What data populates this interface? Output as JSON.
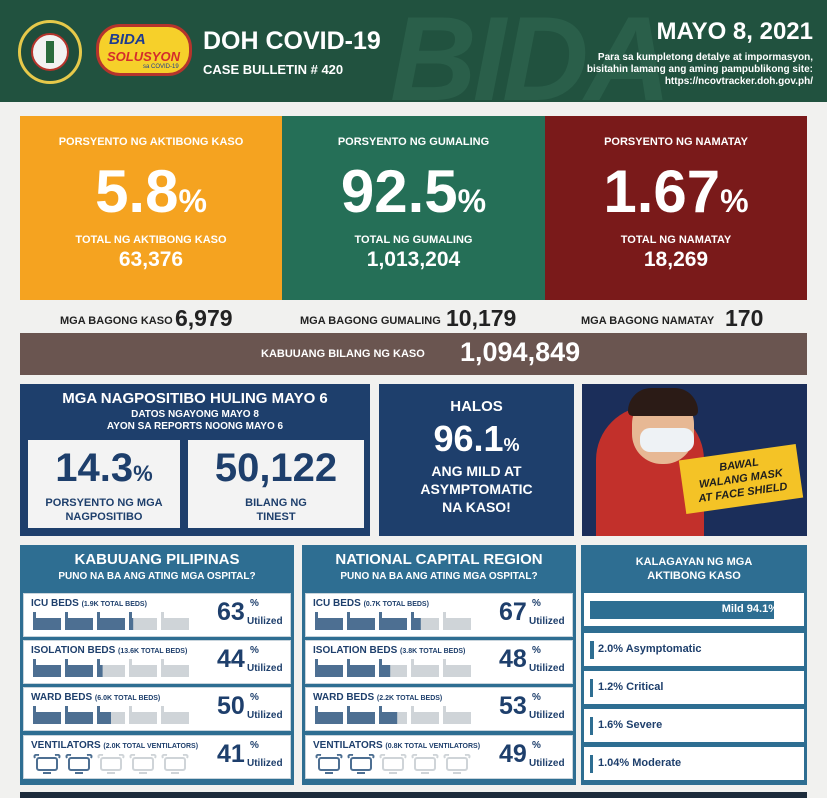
{
  "header": {
    "title": "DOH COVID-19",
    "subtitle": "CASE BULLETIN # 420",
    "date": "MAYO 8, 2021",
    "note_line1": "Para sa kumpletong detalye at impormasyon,",
    "note_line2": "bisitahin lamang ang aming pampublikong site:",
    "note_line3": "https://ncovtracker.doh.gov.ph/",
    "bida_line1": "BIDA",
    "bida_line2": "SOLUSYON",
    "bida_line3": "sa COVID-19",
    "deco": "BIDA"
  },
  "active": {
    "label": "PORSYENTO NG AKTIBONG KASO",
    "percent": "5.8",
    "pct_sign": "%",
    "total_label": "TOTAL NG AKTIBONG KASO",
    "total": "63,376",
    "color": "#f5a320"
  },
  "recovered": {
    "label": "PORSYENTO NG GUMALING",
    "percent": "92.5",
    "pct_sign": "%",
    "total_label": "TOTAL NG GUMALING",
    "total": "1,013,204",
    "color": "#256f57"
  },
  "died": {
    "label": "PORSYENTO NG NAMATAY",
    "percent": "1.67",
    "pct_sign": "%",
    "total_label": "TOTAL NG NAMATAY",
    "total": "18,269",
    "color": "#7a1a1a"
  },
  "new_cases": {
    "label": "MGA BAGONG KASO",
    "value": "6,979"
  },
  "new_recovered": {
    "label": "MGA BAGONG GUMALING",
    "value": "10,179"
  },
  "new_deaths": {
    "label": "MGA BAGONG NAMATAY",
    "value": "170"
  },
  "total_cases": {
    "label": "KABUUANG BILANG NG KASO",
    "value": "1,094,849"
  },
  "positivity": {
    "title": "MGA NAGPOSITIBO HULING MAYO 6",
    "sub1": "DATOS NGAYONG MAYO 8",
    "sub2": "AYON SA REPORTS NOONG MAYO 6",
    "rate": "14.3",
    "pct_sign": "%",
    "rate_label1": "PORSYENTO NG MGA",
    "rate_label2": "NAGPOSITIBO",
    "tested": "50,122",
    "tested_label1": "BILANG NG",
    "tested_label2": "TINEST"
  },
  "mild": {
    "halos": "HALOS",
    "value": "96.1",
    "pct_sign": "%",
    "line1": "ANG MILD AT",
    "line2": "ASYMPTOMATIC",
    "line3": "NA KASO!"
  },
  "photo": {
    "sign_line1": "BAWAL",
    "sign_line2": "WALANG MASK",
    "sign_line3": "AT FACE SHIELD"
  },
  "hospital_ph": {
    "title": "KABUUANG PILIPINAS",
    "subtitle": "PUNO NA BA ANG ATING MGA OSPITAL?",
    "rows": [
      {
        "name": "ICU BEDS",
        "detail": "(1.9K TOTAL BEDS)",
        "value": "63",
        "pct": "%",
        "util": "Utilized",
        "fraction": 0.63,
        "kind": "bed"
      },
      {
        "name": "ISOLATION BEDS",
        "detail": "(13.6K TOTAL BEDS)",
        "value": "44",
        "pct": "%",
        "util": "Utilized",
        "fraction": 0.44,
        "kind": "bed"
      },
      {
        "name": "WARD BEDS",
        "detail": "(6.0K TOTAL BEDS)",
        "value": "50",
        "pct": "%",
        "util": "Utilized",
        "fraction": 0.5,
        "kind": "bed"
      },
      {
        "name": "VENTILATORS",
        "detail": "(2.0K TOTAL VENTILATORS)",
        "value": "41",
        "pct": "%",
        "util": "Utilized",
        "fraction": 0.41,
        "kind": "vent"
      }
    ]
  },
  "hospital_ncr": {
    "title": "NATIONAL CAPITAL REGION",
    "subtitle": "PUNO NA BA ANG ATING MGA OSPITAL?",
    "rows": [
      {
        "name": "ICU BEDS",
        "detail": "(0.7K TOTAL BEDS)",
        "value": "67",
        "pct": "%",
        "util": "Utilized",
        "fraction": 0.67,
        "kind": "bed"
      },
      {
        "name": "ISOLATION BEDS",
        "detail": "(3.8K TOTAL BEDS)",
        "value": "48",
        "pct": "%",
        "util": "Utilized",
        "fraction": 0.48,
        "kind": "bed"
      },
      {
        "name": "WARD BEDS",
        "detail": "(2.2K TOTAL BEDS)",
        "value": "53",
        "pct": "%",
        "util": "Utilized",
        "fraction": 0.53,
        "kind": "bed"
      },
      {
        "name": "VENTILATORS",
        "detail": "(0.8K TOTAL VENTILATORS)",
        "value": "49",
        "pct": "%",
        "util": "Utilized",
        "fraction": 0.49,
        "kind": "vent"
      }
    ]
  },
  "status": {
    "title_line1": "KALAGAYAN NG MGA",
    "title_line2": "AKTIBONG KASO",
    "rows": [
      {
        "label": "Mild 94.1%",
        "fraction": 0.941
      },
      {
        "label": "2.0% Asymptomatic",
        "fraction": 0.02
      },
      {
        "label": "1.2% Critical",
        "fraction": 0.012
      },
      {
        "label": "1.6% Severe",
        "fraction": 0.016
      },
      {
        "label": "1.04% Moderate",
        "fraction": 0.0104
      }
    ]
  },
  "colors": {
    "header_green": "#21523f",
    "navy": "#1e3f6c",
    "hospital_blue": "#2e6e92",
    "total_bar": "#6a5550",
    "bed_filled": "#4d6f92",
    "bed_empty": "#cfd4d8"
  }
}
